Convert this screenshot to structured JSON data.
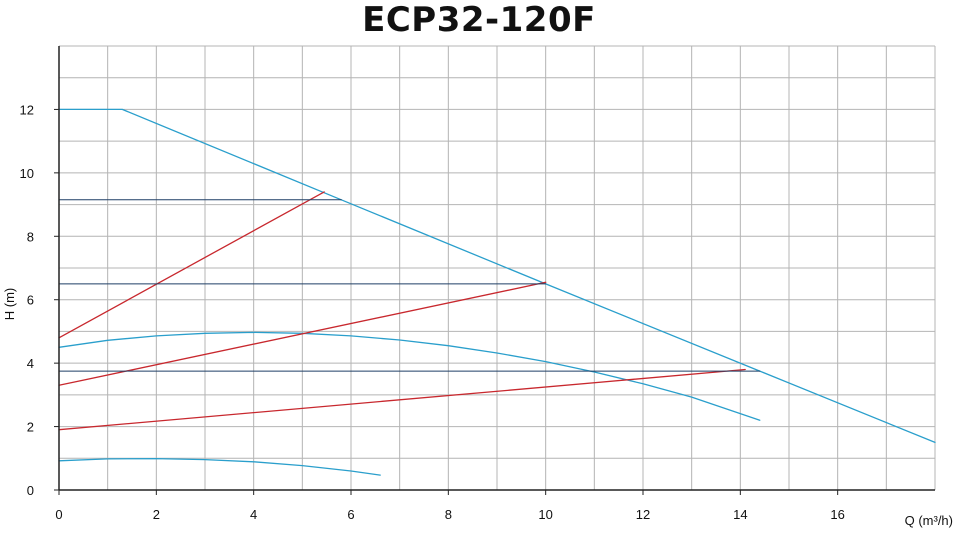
{
  "chart_data": {
    "type": "line",
    "title": "ECP32-120F",
    "xlabel": "Q (m³/h)",
    "ylabel": "H (m)",
    "xlim": [
      0,
      18
    ],
    "ylim": [
      0,
      14
    ],
    "xticks": [
      0,
      2,
      4,
      6,
      8,
      10,
      12,
      14,
      16
    ],
    "yticks": [
      0,
      2,
      4,
      6,
      8,
      10,
      12
    ],
    "grid": true,
    "colors": {
      "max_curve": "#2a9fcc",
      "parabolic": "#2a9fcc",
      "proportional": "#c8282e",
      "constant": "#1f3f66",
      "grid": "#b4b4b4",
      "axis": "#222222"
    },
    "series": [
      {
        "kind": "max_curve",
        "x": [
          0,
          1.3,
          5.8,
          10,
          14.4,
          18
        ],
        "y": [
          12,
          12,
          9.15,
          6.5,
          3.75,
          1.5
        ]
      },
      {
        "kind": "parabolic",
        "x": [
          0,
          1,
          2,
          3,
          4,
          5,
          6,
          7,
          8,
          9,
          10,
          11,
          12,
          13,
          14.4
        ],
        "y": [
          4.5,
          4.72,
          4.86,
          4.94,
          4.97,
          4.94,
          4.86,
          4.73,
          4.55,
          4.32,
          4.05,
          3.72,
          3.35,
          2.93,
          2.2
        ]
      },
      {
        "kind": "parabolic",
        "x": [
          0,
          1,
          2,
          3,
          4,
          5,
          6,
          6.6
        ],
        "y": [
          0.92,
          0.98,
          0.99,
          0.96,
          0.89,
          0.77,
          0.6,
          0.47
        ]
      },
      {
        "kind": "proportional",
        "x": [
          0,
          5.45
        ],
        "y": [
          4.8,
          9.4
        ]
      },
      {
        "kind": "proportional",
        "x": [
          0,
          10.0
        ],
        "y": [
          3.3,
          6.55
        ]
      },
      {
        "kind": "proportional",
        "x": [
          0,
          14.1
        ],
        "y": [
          1.9,
          3.8
        ]
      },
      {
        "kind": "constant",
        "x": [
          0,
          5.8
        ],
        "y": [
          9.15,
          9.15
        ]
      },
      {
        "kind": "constant",
        "x": [
          0,
          10.0
        ],
        "y": [
          6.5,
          6.5
        ]
      },
      {
        "kind": "constant",
        "x": [
          0,
          14.4
        ],
        "y": [
          3.75,
          3.75
        ]
      }
    ]
  }
}
